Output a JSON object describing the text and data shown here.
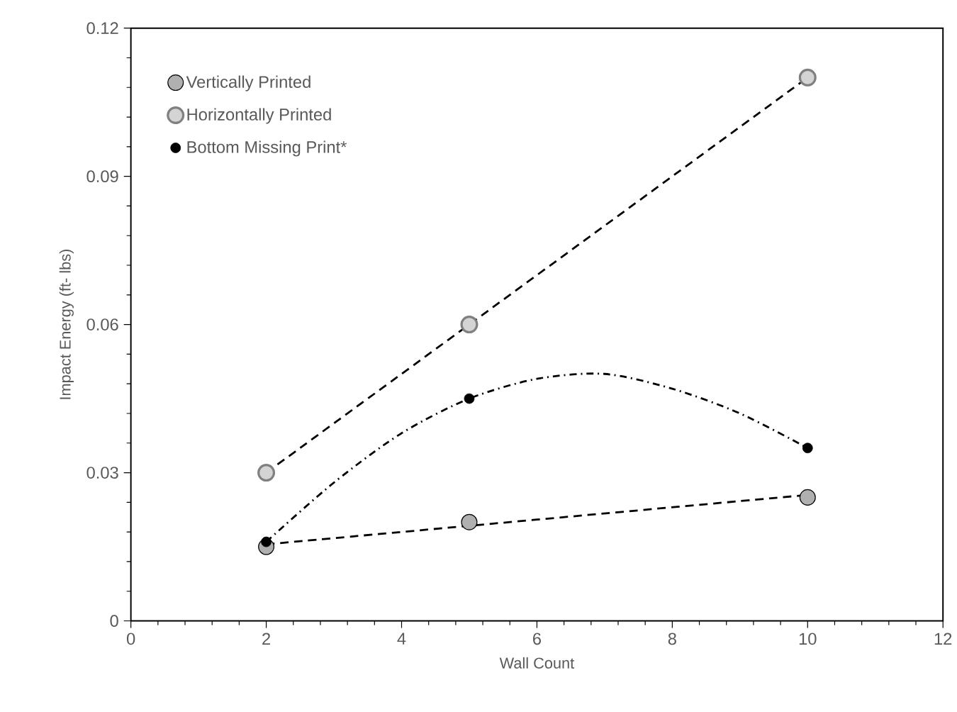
{
  "chart_data": {
    "type": "scatter",
    "xlabel": "Wall Count",
    "ylabel": "Impact Energy (ft- lbs)",
    "xlim": [
      0,
      12
    ],
    "xticks": [
      0,
      2,
      4,
      6,
      8,
      10,
      12
    ],
    "ylim": [
      0,
      0.12
    ],
    "yticks": [
      0,
      0.03,
      0.06,
      0.09,
      0.12
    ],
    "grid": false,
    "legend": "top left",
    "marker": "circle",
    "series": [
      {
        "name": "Vertically Printed",
        "color": "#b0b0b0",
        "x": [
          2,
          5,
          10
        ],
        "values": [
          0.015,
          0.02,
          0.025
        ]
      },
      {
        "name": "Horizontally Printed",
        "color": "#d4d4d4",
        "x": [
          2,
          5,
          10
        ],
        "values": [
          0.03,
          0.06,
          0.11
        ]
      },
      {
        "name": "Bottom Missing Print*",
        "color": "#000000",
        "x": [
          2,
          5,
          10
        ],
        "values": [
          0.016,
          0.045,
          0.035
        ]
      },
      {
        "type": "line",
        "color": "#000000",
        "line_style": "dashed",
        "marker": "none",
        "x": [
          2,
          10
        ],
        "values": [
          0.0155,
          0.0255
        ]
      },
      {
        "type": "line",
        "color": "#000000",
        "line_style": "dashed",
        "marker": "none",
        "x": [
          2,
          10
        ],
        "values": [
          0.03,
          0.11
        ]
      },
      {
        "type": "line",
        "color": "#000000",
        "line_style": "dashdot",
        "marker": "none",
        "x": [
          2,
          3,
          4,
          5,
          6,
          7,
          8,
          9,
          10
        ],
        "values": [
          0.016,
          0.028,
          0.038,
          0.045,
          0.049,
          0.05,
          0.047,
          0.042,
          0.035
        ]
      }
    ]
  }
}
